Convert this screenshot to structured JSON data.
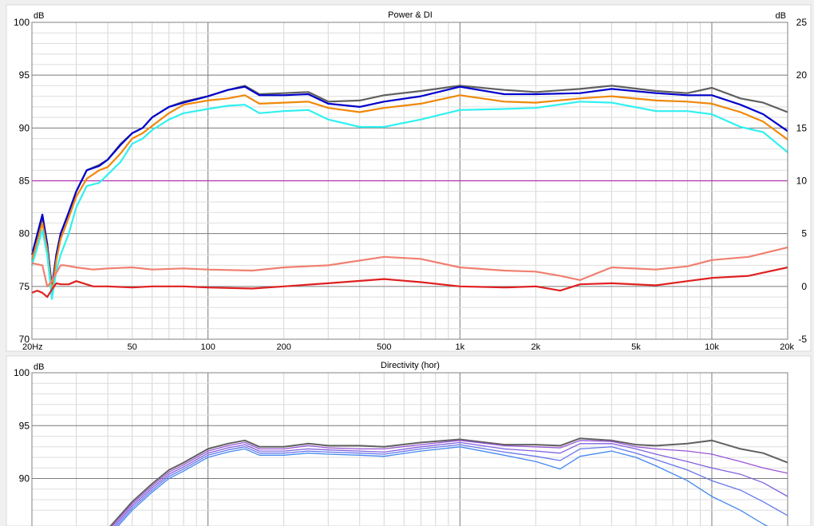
{
  "chart_data": [
    {
      "type": "line",
      "title": "Power & DI",
      "ylabel_left": "dB",
      "ylabel_right": "dB",
      "xscale": "log",
      "xlim": [
        20,
        20000
      ],
      "ylim": [
        70,
        100
      ],
      "ylim_right": [
        -5,
        25
      ],
      "grid": true,
      "x_tick_labels": [
        "20Hz",
        "50",
        "100",
        "200",
        "500",
        "1k",
        "2k",
        "5k",
        "10k",
        "20k"
      ],
      "y_ticks_left": [
        100,
        95,
        90,
        85,
        80,
        75,
        70
      ],
      "y_ticks_right": [
        25,
        20,
        15,
        10,
        5,
        0,
        -5
      ],
      "reference_line_y": 85,
      "series": [
        {
          "color": "#606060",
          "axis": "left",
          "x": [
            20,
            22,
            23,
            24,
            25,
            26,
            27,
            28,
            30,
            33,
            37,
            40,
            45,
            50,
            55,
            60,
            70,
            80,
            100,
            120,
            140,
            160,
            200,
            250,
            300,
            400,
            500,
            700,
            1000,
            1500,
            2000,
            3000,
            4000,
            6000,
            8000,
            10000,
            13000,
            16000,
            20000
          ],
          "y": [
            78,
            81.5,
            79,
            75,
            78,
            80,
            81,
            82,
            84,
            86,
            86.5,
            87,
            88.5,
            89.5,
            90,
            91,
            92,
            92.5,
            93,
            93.6,
            94,
            93.2,
            93.3,
            93.4,
            92.5,
            92.6,
            93.1,
            93.5,
            94,
            93.6,
            93.4,
            93.7,
            94,
            93.5,
            93.3,
            93.8,
            92.8,
            92.4,
            91.5
          ]
        },
        {
          "color": "#0000cc",
          "axis": "left",
          "x": [
            20,
            22,
            23,
            24,
            25,
            26,
            27,
            28,
            30,
            33,
            37,
            40,
            45,
            50,
            55,
            60,
            70,
            80,
            100,
            120,
            140,
            160,
            200,
            250,
            300,
            400,
            500,
            700,
            1000,
            1500,
            2000,
            3000,
            4000,
            6000,
            8000,
            10000,
            13000,
            16000,
            20000
          ],
          "y": [
            78,
            81.8,
            79,
            74.8,
            78,
            80,
            81,
            82,
            84,
            86,
            86.4,
            87,
            88.4,
            89.5,
            90,
            91,
            92,
            92.4,
            93,
            93.6,
            93.9,
            93.1,
            93.1,
            93.2,
            92.3,
            92,
            92.5,
            93,
            93.9,
            93.2,
            93.2,
            93.3,
            93.7,
            93.3,
            93.1,
            93.1,
            92.2,
            91.3,
            89.7
          ]
        },
        {
          "color": "#f0880a",
          "axis": "left",
          "x": [
            20,
            22,
            23,
            24,
            25,
            26,
            27,
            28,
            30,
            33,
            37,
            40,
            45,
            50,
            55,
            60,
            70,
            80,
            100,
            120,
            140,
            160,
            200,
            250,
            300,
            400,
            500,
            700,
            1000,
            1500,
            2000,
            3000,
            4000,
            6000,
            8000,
            10000,
            13000,
            16000,
            20000
          ],
          "y": [
            77.5,
            81,
            78.5,
            74.5,
            77.5,
            79.5,
            80.5,
            81.5,
            83.5,
            85.2,
            86,
            86.3,
            87.6,
            89,
            89.5,
            90.2,
            91.4,
            92.2,
            92.6,
            92.8,
            93.1,
            92.3,
            92.4,
            92.5,
            91.9,
            91.5,
            91.9,
            92.3,
            93.1,
            92.5,
            92.4,
            92.8,
            93,
            92.6,
            92.5,
            92.3,
            91.5,
            90.6,
            88.9
          ]
        },
        {
          "color": "#30f0f0",
          "axis": "left",
          "x": [
            20,
            22,
            23,
            24,
            25,
            26,
            27,
            28,
            30,
            33,
            37,
            40,
            45,
            50,
            55,
            60,
            70,
            80,
            100,
            120,
            140,
            160,
            200,
            250,
            300,
            400,
            500,
            700,
            1000,
            1500,
            2000,
            3000,
            4000,
            6000,
            8000,
            10000,
            13000,
            16000,
            20000
          ],
          "y": [
            77,
            80.3,
            78,
            73.8,
            76.5,
            78,
            79,
            80,
            82.5,
            84.5,
            84.8,
            85.6,
            86.8,
            88.5,
            89,
            89.8,
            90.8,
            91.4,
            91.8,
            92.1,
            92.2,
            91.4,
            91.6,
            91.7,
            90.8,
            90.1,
            90.1,
            90.8,
            91.7,
            91.8,
            91.9,
            92.5,
            92.4,
            91.6,
            91.6,
            91.3,
            90.1,
            89.6,
            87.7
          ]
        },
        {
          "color": "#f08070",
          "axis": "right",
          "x": [
            20,
            22,
            23,
            24,
            25,
            26,
            27,
            30,
            35,
            40,
            50,
            60,
            80,
            100,
            150,
            200,
            300,
            500,
            700,
            1000,
            1500,
            2000,
            2500,
            3000,
            4000,
            6000,
            8000,
            10000,
            14000,
            20000
          ],
          "y": [
            2.2,
            2,
            0,
            0.5,
            1.3,
            2,
            2,
            1.8,
            1.6,
            1.7,
            1.8,
            1.6,
            1.7,
            1.6,
            1.5,
            1.8,
            2,
            2.8,
            2.6,
            1.8,
            1.5,
            1.4,
            1,
            0.6,
            1.8,
            1.6,
            1.9,
            2.5,
            2.8,
            3.7
          ]
        },
        {
          "color": "#e02020",
          "axis": "right",
          "x": [
            20,
            21,
            22,
            23,
            24,
            25,
            26,
            28,
            30,
            35,
            40,
            50,
            60,
            80,
            100,
            150,
            200,
            300,
            500,
            700,
            1000,
            1500,
            2000,
            2500,
            3000,
            4000,
            6000,
            8000,
            10000,
            14000,
            20000
          ],
          "y": [
            -0.6,
            -0.4,
            -0.6,
            -1,
            -0.3,
            0.3,
            0.2,
            0.2,
            0.5,
            0,
            0,
            -0.1,
            0,
            0,
            -0.1,
            -0.2,
            0,
            0.3,
            0.7,
            0.4,
            0,
            -0.1,
            0,
            -0.4,
            0.2,
            0.3,
            0.1,
            0.5,
            0.8,
            1,
            1.8
          ]
        }
      ]
    },
    {
      "type": "line",
      "title": "Directivity (hor)",
      "ylabel_left": "dB",
      "xscale": "log",
      "xlim": [
        20,
        20000
      ],
      "ylim": [
        86,
        100
      ],
      "grid": true,
      "y_ticks_left": [
        100,
        95,
        90
      ],
      "series": [
        {
          "color": "#606060",
          "x": [
            40,
            50,
            60,
            70,
            80,
            100,
            120,
            140,
            160,
            200,
            250,
            300,
            400,
            500,
            700,
            1000,
            1500,
            2000,
            2500,
            3000,
            4000,
            5000,
            6000,
            8000,
            10000,
            13000,
            16000,
            20000
          ],
          "y": [
            85.2,
            87.8,
            89.5,
            90.8,
            91.5,
            92.8,
            93.3,
            93.6,
            93,
            93,
            93.3,
            93.1,
            93.1,
            93,
            93.4,
            93.7,
            93.2,
            93.2,
            93.1,
            93.8,
            93.6,
            93.2,
            93.1,
            93.3,
            93.6,
            92.8,
            92.4,
            91.5
          ]
        },
        {
          "color": "#9955d5",
          "x": [
            40,
            50,
            60,
            70,
            80,
            100,
            120,
            140,
            160,
            200,
            250,
            300,
            400,
            500,
            700,
            1000,
            1500,
            2000,
            2500,
            3000,
            4000,
            5000,
            6000,
            8000,
            10000,
            13000,
            16000,
            20000
          ],
          "y": [
            85,
            87.6,
            89.3,
            90.6,
            91.3,
            92.6,
            93.1,
            93.4,
            92.8,
            92.8,
            93.1,
            92.9,
            92.8,
            92.8,
            93.2,
            93.6,
            93.1,
            93,
            92.9,
            93.6,
            93.5,
            93,
            92.8,
            92.6,
            92.3,
            91.6,
            91,
            90.5
          ]
        },
        {
          "color": "#8060e0",
          "x": [
            40,
            50,
            60,
            70,
            80,
            100,
            120,
            140,
            160,
            200,
            250,
            300,
            400,
            500,
            700,
            1000,
            1500,
            2000,
            2500,
            3000,
            4000,
            5000,
            6000,
            8000,
            10000,
            13000,
            16000,
            20000
          ],
          "y": [
            84.8,
            87.4,
            89.1,
            90.4,
            91.1,
            92.4,
            92.9,
            93.2,
            92.6,
            92.6,
            92.8,
            92.7,
            92.6,
            92.5,
            93,
            93.4,
            92.8,
            92.6,
            92.4,
            93.3,
            93.3,
            92.8,
            92.3,
            91.6,
            91,
            90.4,
            89.6,
            88.3
          ]
        },
        {
          "color": "#6677ea",
          "x": [
            40,
            50,
            60,
            70,
            80,
            100,
            120,
            140,
            160,
            200,
            250,
            300,
            400,
            500,
            700,
            1000,
            1500,
            2000,
            2500,
            3000,
            4000,
            5000,
            6000,
            8000,
            10000,
            13000,
            16000,
            20000
          ],
          "y": [
            84.6,
            87.2,
            88.9,
            90.2,
            90.9,
            92.2,
            92.7,
            93,
            92.4,
            92.4,
            92.6,
            92.5,
            92.4,
            92.3,
            92.8,
            93.2,
            92.5,
            92.1,
            91.7,
            92.8,
            93,
            92.4,
            91.8,
            90.8,
            89.8,
            88.9,
            87.8,
            86.5
          ]
        },
        {
          "color": "#4488f0",
          "x": [
            40,
            50,
            60,
            70,
            80,
            100,
            120,
            140,
            160,
            200,
            250,
            300,
            400,
            500,
            700,
            1000,
            1500,
            2000,
            2500,
            3000,
            4000,
            5000,
            6000,
            8000,
            10000,
            13000,
            16000,
            20000
          ],
          "y": [
            84.4,
            87,
            88.7,
            90,
            90.7,
            92,
            92.5,
            92.8,
            92.2,
            92.2,
            92.4,
            92.3,
            92.2,
            92.1,
            92.6,
            93,
            92.2,
            91.6,
            90.9,
            92.1,
            92.6,
            92,
            91.2,
            89.8,
            88.3,
            87,
            85.7,
            84.5
          ]
        }
      ]
    }
  ]
}
